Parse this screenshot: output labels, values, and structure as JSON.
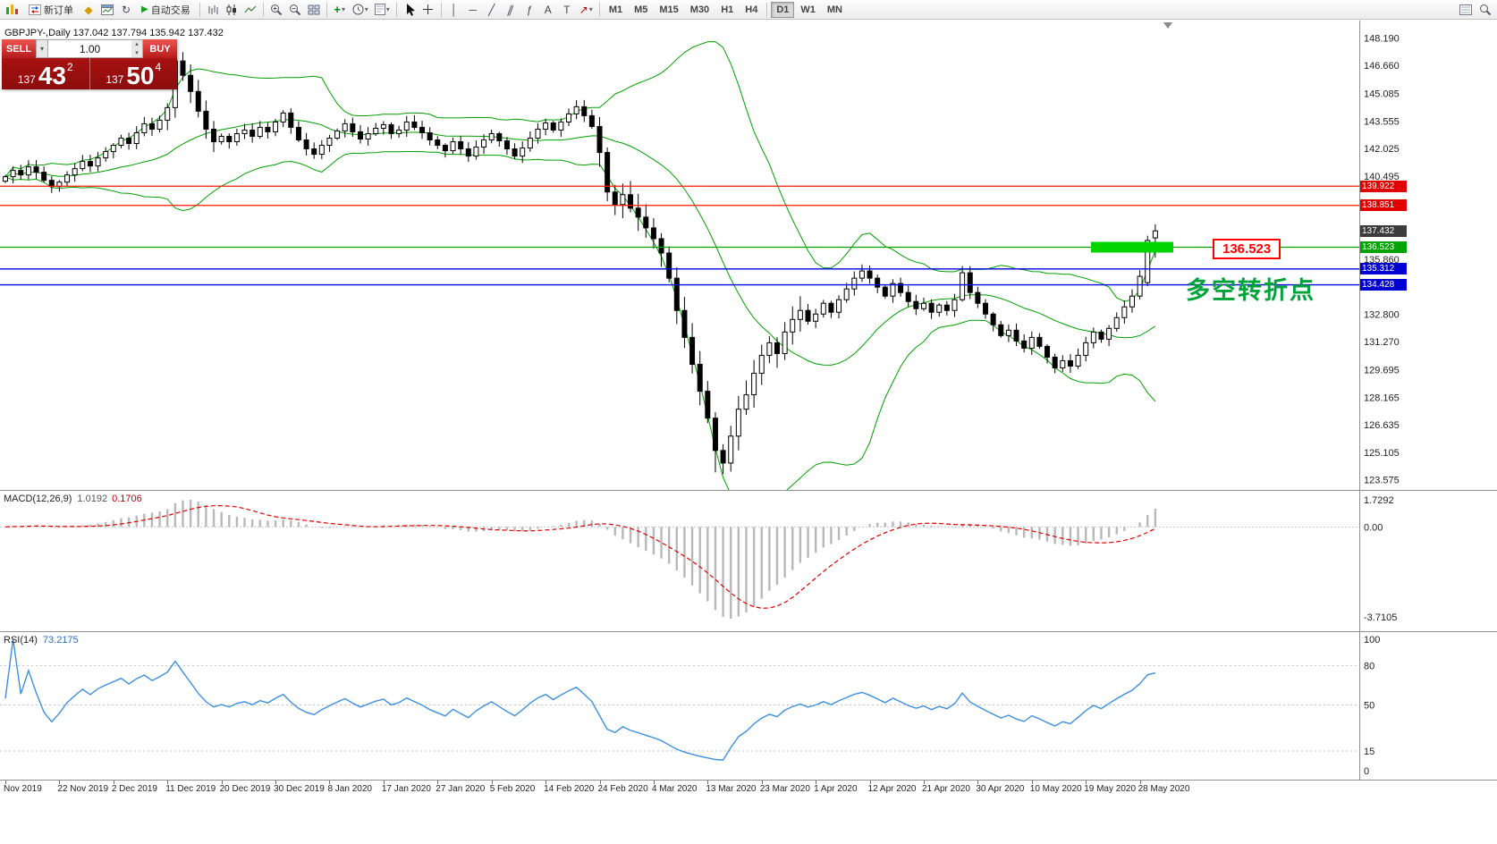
{
  "toolbar": {
    "new_order": "新订单",
    "auto_trading": "自动交易",
    "timeframes": [
      "M1",
      "M5",
      "M15",
      "M30",
      "H1",
      "H4",
      "D1",
      "W1",
      "MN"
    ],
    "active_timeframe": "D1"
  },
  "icons": {
    "caret_down": "▾",
    "play": "▶",
    "diamond": "◆",
    "refresh": "↻",
    "plus": "+",
    "vline": "│",
    "hline": "─",
    "trendline": "╱",
    "channel": "∥",
    "fibonacci": "ƒ",
    "text": "A",
    "label": "T",
    "arrow": "↗",
    "spin_up": "▴",
    "spin_down": "▾"
  },
  "chart": {
    "symbol_header": "GBPJPY-,Daily  137.042 137.794 135.942 137.432",
    "trade_panel": {
      "sell_label": "SELL",
      "buy_label": "BUY",
      "volume": "1.00",
      "sell_small": "137",
      "sell_big": "43",
      "sell_sup": "2",
      "buy_small": "137",
      "buy_big": "50",
      "buy_sup": "4"
    },
    "levels": {
      "red_upper": "139.922",
      "red_lower": "138.851",
      "current": "137.432",
      "pivot": "136.523",
      "support_upper": "135.312",
      "support_lower": "134.428"
    },
    "callout": "136.523",
    "annotation": "多空转折点",
    "highlight_color": "#00D400",
    "price_axis_labels": [
      "148.190",
      "146.660",
      "145.085",
      "143.555",
      "142.025",
      "140.495",
      "135.860",
      "132.800",
      "131.270",
      "129.695",
      "128.165",
      "126.635",
      "125.105",
      "123.575"
    ],
    "price_scale": {
      "max": 149.05,
      "min": 123.25
    }
  },
  "macd": {
    "header_name": "MACD(12,26,9)",
    "value_main": "1.0192",
    "value_signal": "0.1706",
    "axis_max": "1.7292",
    "axis_zero": "0.00",
    "axis_min": "-3.7105"
  },
  "rsi": {
    "header_name": "RSI(14)",
    "value": "73.2175",
    "axis_values": [
      100,
      80,
      50,
      15,
      0
    ],
    "levels": [
      80,
      50,
      15
    ]
  },
  "chart_data": {
    "type": "candlestick",
    "symbol": "GBPJPY-",
    "period": "Daily",
    "ohlc_header": {
      "open": 137.042,
      "high": 137.794,
      "low": 135.942,
      "close": 137.432
    },
    "horizontal_lines": [
      139.922,
      138.851,
      136.523,
      135.312,
      134.428
    ],
    "date_ticks": [
      "Nov 2019",
      "22 Nov 2019",
      "2 Dec 2019",
      "11 Dec 2019",
      "20 Dec 2019",
      "30 Dec 2019",
      "8 Jan 2020",
      "17 Jan 2020",
      "27 Jan 2020",
      "5 Feb 2020",
      "14 Feb 2020",
      "24 Feb 2020",
      "4 Mar 2020",
      "13 Mar 2020",
      "23 Mar 2020",
      "1 Apr 2020",
      "12 Apr 2020",
      "21 Apr 2020",
      "30 Apr 2020",
      "10 May 2020",
      "19 May 2020",
      "28 May 2020"
    ],
    "tick_every_n_candles": 7,
    "closes": [
      140.45,
      140.8,
      140.55,
      141.0,
      140.7,
      140.25,
      139.9,
      140.15,
      140.55,
      140.9,
      141.3,
      141.05,
      141.5,
      141.85,
      142.2,
      142.6,
      142.3,
      142.9,
      143.4,
      143.1,
      143.6,
      144.3,
      146.9,
      146.1,
      145.2,
      144.1,
      143.1,
      142.4,
      142.7,
      142.4,
      142.85,
      143.05,
      142.7,
      143.2,
      142.95,
      143.5,
      144.0,
      143.2,
      142.5,
      142.0,
      141.7,
      142.2,
      142.6,
      143.0,
      143.4,
      142.95,
      142.55,
      142.85,
      143.15,
      143.35,
      142.85,
      143.05,
      143.5,
      143.2,
      142.9,
      142.5,
      142.2,
      141.9,
      142.4,
      142.0,
      141.6,
      142.1,
      142.5,
      142.85,
      142.45,
      142.0,
      141.6,
      142.05,
      142.6,
      143.1,
      143.45,
      143.05,
      143.5,
      143.95,
      144.35,
      143.85,
      143.25,
      141.8,
      139.6,
      138.9,
      139.45,
      138.7,
      138.2,
      137.6,
      137.0,
      136.2,
      134.8,
      133.0,
      131.5,
      130.0,
      128.5,
      127.0,
      125.2,
      124.5,
      126.0,
      127.5,
      128.3,
      129.5,
      130.5,
      131.2,
      130.6,
      131.8,
      132.5,
      133.0,
      132.4,
      132.8,
      133.4,
      132.9,
      133.6,
      134.2,
      134.8,
      135.2,
      134.8,
      134.3,
      133.8,
      134.5,
      134.0,
      133.5,
      133.1,
      133.4,
      132.9,
      133.3,
      133.0,
      133.6,
      135.1,
      134.0,
      133.4,
      132.8,
      132.2,
      131.6,
      131.9,
      131.3,
      130.9,
      131.5,
      131.0,
      130.4,
      129.8,
      130.2,
      129.9,
      130.5,
      131.2,
      131.8,
      131.4,
      132.0,
      132.6,
      133.2,
      133.8,
      134.9,
      136.9,
      137.432
    ],
    "overrides": {
      "22": {
        "h": 147.95
      },
      "92": {
        "l": 123.98
      },
      "148": {
        "o": 134.55,
        "l": 134.35
      },
      "149": {
        "o": 137.042,
        "h": 137.794,
        "l": 135.942,
        "c": 137.432
      }
    },
    "indicators": {
      "bollinger": {
        "period": 20,
        "deviation": 2
      },
      "macd": {
        "fast": 12,
        "slow": 26,
        "signal": 9
      },
      "rsi": {
        "period": 14
      }
    }
  }
}
